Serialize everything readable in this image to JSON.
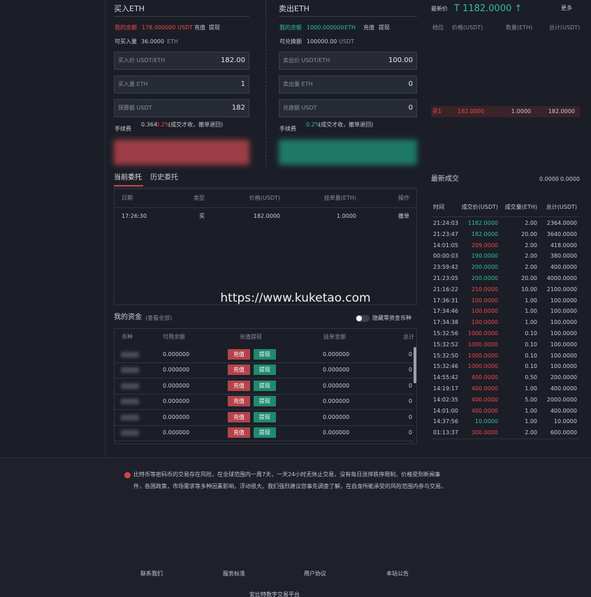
{
  "buy": {
    "title": "买入ETH",
    "balance_label": "我的余额",
    "balance": "178.000000",
    "balance_unit": "USDT",
    "deposit": "充值",
    "withdraw": "提现",
    "available_label": "可买入量",
    "available": "36.0000",
    "available_unit": "ETH",
    "price_label": "买入价 USDT/ETH",
    "price": "182.00",
    "amount_label": "买入量 ETH",
    "amount": "1",
    "total_label": "预算额 USDT",
    "total": "182",
    "fee_label": "手续费",
    "fee": "0.364",
    "fee_rate": "0.2%",
    "fee_note": "(成交才收，撤单退回)"
  },
  "sell": {
    "title": "卖出ETH",
    "balance_label": "我的余额",
    "balance": "1000.000000",
    "balance_unit": "ETH",
    "deposit": "充值",
    "withdraw": "提现",
    "available_label": "可兑换额",
    "available": "100000.00",
    "available_unit": "USDT",
    "price_label": "卖出价 USDT/ETH",
    "price": "100.00",
    "amount_label": "卖出量 ETH",
    "amount": "0",
    "total_label": "兑换额 USDT",
    "total": "0",
    "fee_label": "手续费",
    "fee_rate": "0.2%",
    "fee_note": "(成交才收，撤单退回)"
  },
  "ticker": {
    "label": "最新价",
    "price": "T 1182.0000 ↑",
    "more": "更多"
  },
  "orderbook": {
    "headers": [
      "档位",
      "价格(USDT)",
      "数量(ETH)",
      "总计(USDT)"
    ],
    "rows": [
      [
        "买1",
        "182.0000",
        "1.0000",
        "182.0000"
      ]
    ]
  },
  "orders": {
    "tabs": [
      "当前委托",
      "历史委托"
    ],
    "headers": [
      "日期",
      "类型",
      "价格(USDT)",
      "挂单量(ETH)",
      "操作"
    ],
    "rows": [
      [
        "17:26:30",
        "买",
        "182.0000",
        "1.0000",
        "撤单"
      ]
    ]
  },
  "watermark": "https://www.kuketao.com",
  "funds": {
    "title": "我的资金",
    "view_all": "(查看全部)",
    "hide_zero": "隐藏零资金币种",
    "headers": [
      "币种",
      "可用余额",
      "充值提现",
      "挂单金额",
      "总计"
    ],
    "rows": [
      [
        "0.000000",
        "充值",
        "提现",
        "0.000000",
        "0"
      ],
      [
        "0.000000",
        "充值",
        "提现",
        "0.000000",
        "0"
      ],
      [
        "0.000000",
        "充值",
        "提现",
        "0.000000",
        "0"
      ],
      [
        "0.000000",
        "充值",
        "提现",
        "0.000000",
        "0"
      ],
      [
        "0.000000",
        "充值",
        "提现",
        "0.000000",
        "0"
      ],
      [
        "0.000000",
        "充值",
        "提现",
        "0.000000",
        "0"
      ]
    ]
  },
  "trades": {
    "title": "最新成交",
    "stats": [
      "0.0000",
      "0.0000"
    ],
    "headers": [
      "时间",
      "成交价(USDT)",
      "成交量(ETH)",
      "总计(USDT)"
    ],
    "rows": [
      {
        "time": "21:24:03",
        "price": "1182.0000",
        "amount": "2.00",
        "total": "2364.0000",
        "color": "#2fbf9f"
      },
      {
        "time": "21:23:47",
        "price": "182.0000",
        "amount": "20.00",
        "total": "3640.0000",
        "color": "#2fbf9f"
      },
      {
        "time": "14:01:05",
        "price": "209.0000",
        "amount": "2.00",
        "total": "418.0000",
        "color": "#f04848"
      },
      {
        "time": "00:00:03",
        "price": "190.0000",
        "amount": "2.00",
        "total": "380.0000",
        "color": "#2fbf9f"
      },
      {
        "time": "23:59:42",
        "price": "200.0000",
        "amount": "2.00",
        "total": "400.0000",
        "color": "#2fbf9f"
      },
      {
        "time": "21:23:05",
        "price": "200.0000",
        "amount": "20.00",
        "total": "4000.0000",
        "color": "#2fbf9f"
      },
      {
        "time": "21:16:22",
        "price": "210.0000",
        "amount": "10.00",
        "total": "2100.0000",
        "color": "#f04848"
      },
      {
        "time": "17:36:31",
        "price": "100.0000",
        "amount": "1.00",
        "total": "100.0000",
        "color": "#f04848"
      },
      {
        "time": "17:34:46",
        "price": "100.0000",
        "amount": "1.00",
        "total": "100.0000",
        "color": "#f04848"
      },
      {
        "time": "17:34:38",
        "price": "100.0000",
        "amount": "1.00",
        "total": "100.0000",
        "color": "#f04848"
      },
      {
        "time": "15:32:56",
        "price": "1000.0000",
        "amount": "0.10",
        "total": "100.0000",
        "color": "#f04848"
      },
      {
        "time": "15:32:52",
        "price": "1000.0000",
        "amount": "0.10",
        "total": "100.0000",
        "color": "#f04848"
      },
      {
        "time": "15:32:50",
        "price": "1000.0000",
        "amount": "0.10",
        "total": "100.0000",
        "color": "#f04848"
      },
      {
        "time": "15:32:46",
        "price": "1000.0000",
        "amount": "0.10",
        "total": "100.0000",
        "color": "#f04848"
      },
      {
        "time": "14:55:42",
        "price": "400.0000",
        "amount": "0.50",
        "total": "200.0000",
        "color": "#f04848"
      },
      {
        "time": "14:19:17",
        "price": "400.0000",
        "amount": "1.00",
        "total": "400.0000",
        "color": "#f04848"
      },
      {
        "time": "14:02:35",
        "price": "400.0000",
        "amount": "5.00",
        "total": "2000.0000",
        "color": "#f04848"
      },
      {
        "time": "14:01:00",
        "price": "400.0000",
        "amount": "1.00",
        "total": "400.0000",
        "color": "#f04848"
      },
      {
        "time": "14:37:56",
        "price": "10.0000",
        "amount": "1.00",
        "total": "10.0000",
        "color": "#2fbf9f"
      },
      {
        "time": "01:13:37",
        "price": "300.0000",
        "amount": "2.00",
        "total": "600.0000",
        "color": "#f04848"
      }
    ]
  },
  "footer": {
    "warning": "比特币等密码币的交易存在风险，在全球范围内一周7天，一天24小时无休止交易，没有每日涨停跌停限制，价格受到新闻事件，各国政策，市场需求等多种因素影响，浮动很大。我们强烈建议您事先调查了解，在自身所能承受的风险范围内参与交易。",
    "links": [
      "联系我们",
      "服务标准",
      "用户协议",
      "本站公告"
    ],
    "platform": "安比特数字交易平台"
  }
}
